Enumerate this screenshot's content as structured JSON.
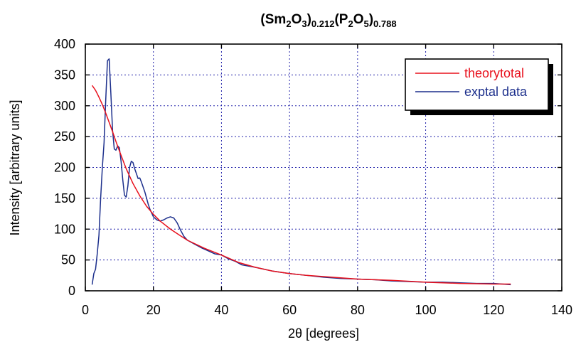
{
  "chart_data": {
    "type": "line",
    "title": {
      "parts": [
        {
          "text": "(Sm"
        },
        {
          "text": "2",
          "sub": true
        },
        {
          "text": "O"
        },
        {
          "text": "3",
          "sub": true
        },
        {
          "text": ")"
        },
        {
          "text": "0.212",
          "sub": true
        },
        {
          "text": "(P"
        },
        {
          "text": "2",
          "sub": true
        },
        {
          "text": "O"
        },
        {
          "text": "5",
          "sub": true
        },
        {
          "text": ")"
        },
        {
          "text": "0.788",
          "sub": true
        }
      ]
    },
    "xlabel": "2θ [degrees]",
    "ylabel": "Intensity [arbitrary units]",
    "xlim": [
      0,
      140
    ],
    "ylim": [
      0,
      400
    ],
    "xticks": [
      0,
      20,
      40,
      60,
      80,
      100,
      120,
      140
    ],
    "yticks": [
      0,
      50,
      100,
      150,
      200,
      250,
      300,
      350,
      400
    ],
    "grid": true,
    "legend_position": "top-right",
    "series": [
      {
        "name": "theorytotal",
        "color": "#e8101c",
        "x": [
          2,
          3,
          4,
          5,
          6,
          7,
          8,
          9,
          10,
          12,
          14,
          16,
          18,
          20,
          22,
          25,
          28,
          30,
          35,
          40,
          45,
          50,
          55,
          60,
          65,
          70,
          80,
          90,
          100,
          110,
          120,
          125
        ],
        "y": [
          333,
          325,
          314,
          302,
          288,
          273,
          258,
          242,
          227,
          198,
          174,
          154,
          137,
          124,
          113,
          100,
          89,
          82,
          69,
          58,
          46,
          38,
          32,
          28,
          25,
          23,
          19,
          17,
          14,
          12,
          11,
          11
        ]
      },
      {
        "name": "exptal data",
        "color": "#1c2f8c",
        "x": [
          2,
          2.5,
          3,
          3.5,
          4,
          4.5,
          5,
          5.5,
          6,
          6.5,
          7,
          7.5,
          8,
          8.5,
          9,
          9.5,
          10,
          10.5,
          11,
          11.5,
          12,
          12.5,
          13,
          13.5,
          14,
          14.5,
          15,
          15.5,
          16,
          16.5,
          17,
          17.5,
          18,
          18.5,
          19,
          20,
          21,
          22,
          23,
          24,
          25,
          26,
          27,
          28,
          29,
          30,
          32,
          34,
          36,
          38,
          40,
          42,
          44,
          46,
          48,
          50,
          55,
          60,
          65,
          70,
          75,
          80,
          85,
          90,
          95,
          100,
          105,
          110,
          115,
          120,
          125
        ],
        "y": [
          10,
          28,
          35,
          60,
          90,
          150,
          200,
          240,
          310,
          373,
          376,
          320,
          260,
          230,
          228,
          235,
          232,
          210,
          180,
          155,
          152,
          170,
          200,
          210,
          208,
          198,
          190,
          182,
          183,
          176,
          168,
          160,
          150,
          140,
          132,
          120,
          115,
          113,
          115,
          118,
          120,
          118,
          110,
          98,
          88,
          82,
          76,
          70,
          65,
          60,
          58,
          52,
          48,
          42,
          40,
          38,
          32,
          28,
          25,
          22,
          20,
          19,
          18,
          16,
          15,
          14,
          14,
          13,
          12,
          12,
          10
        ]
      }
    ]
  }
}
